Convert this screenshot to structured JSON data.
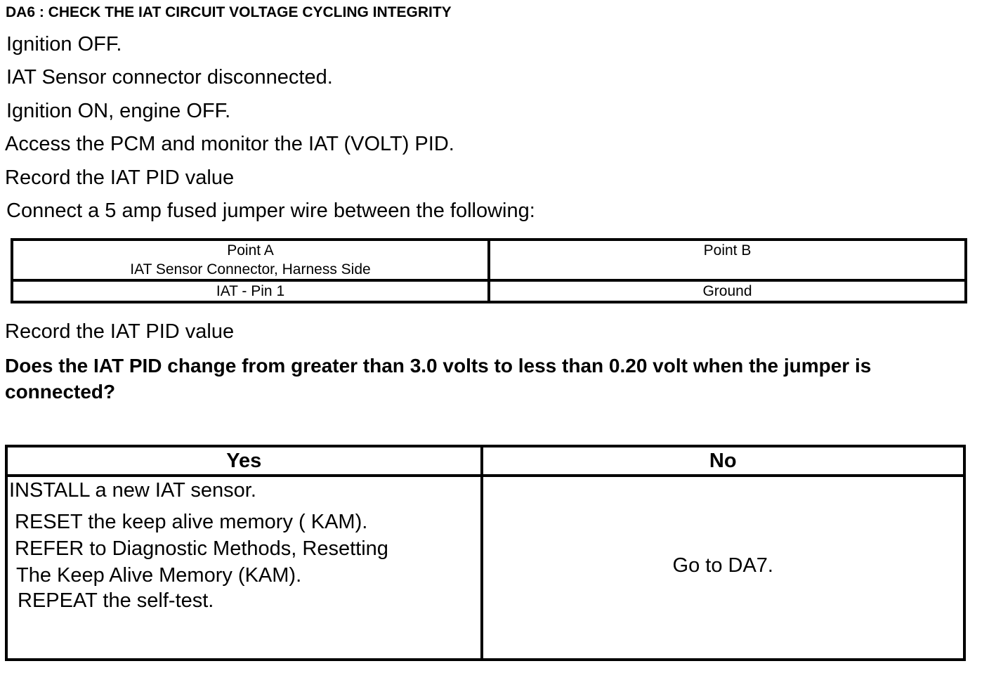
{
  "title": "DA6 : CHECK THE IAT CIRCUIT VOLTAGE CYCLING INTEGRITY",
  "steps": [
    "Ignition OFF.",
    "IAT Sensor connector disconnected.",
    "Ignition ON, engine OFF.",
    "Access the PCM and monitor the  IAT (VOLT) PID.",
    "Record the IAT  PID value",
    "Connect a 5 amp fused jumper wire between the following:"
  ],
  "jumper_table": {
    "headers": [
      [
        "Point A",
        "IAT Sensor Connector, Harness Side"
      ],
      [
        "Point B"
      ]
    ],
    "rows": [
      [
        "IAT - Pin 1",
        "Ground"
      ]
    ]
  },
  "record_again": "Record the IAT  PID value",
  "question": "Does the IAT  PID change from greater than 3.0 volts to less than 0.20 volt when the jumper is connected?",
  "result_table": {
    "yes_label": "Yes",
    "no_label": "No",
    "yes_lines": [
      "INSTALL a new IAT sensor.",
      "RESET the keep alive memory ( KAM).",
      "REFER to  Diagnostic Methods, Resetting",
      "The Keep Alive Memory (KAM).",
      "REPEAT the self-test."
    ],
    "no_text": "Go to DA7."
  }
}
